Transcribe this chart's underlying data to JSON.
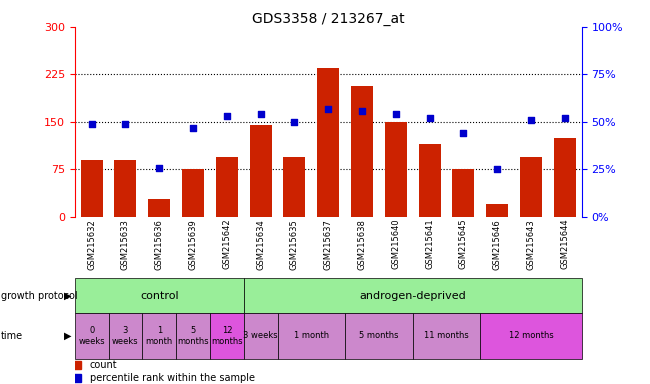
{
  "title": "GDS3358 / 213267_at",
  "samples": [
    "GSM215632",
    "GSM215633",
    "GSM215636",
    "GSM215639",
    "GSM215642",
    "GSM215634",
    "GSM215635",
    "GSM215637",
    "GSM215638",
    "GSM215640",
    "GSM215641",
    "GSM215645",
    "GSM215646",
    "GSM215643",
    "GSM215644"
  ],
  "bar_values": [
    90,
    90,
    28,
    75,
    95,
    145,
    95,
    235,
    207,
    150,
    115,
    75,
    20,
    95,
    125
  ],
  "dot_values": [
    49,
    49,
    26,
    47,
    53,
    54,
    50,
    57,
    56,
    54,
    52,
    44,
    25,
    51,
    52
  ],
  "bar_color": "#cc2200",
  "dot_color": "#0000cc",
  "left_ylim": [
    0,
    300
  ],
  "right_ylim": [
    0,
    100
  ],
  "left_yticks": [
    0,
    75,
    150,
    225,
    300
  ],
  "right_yticks": [
    0,
    25,
    50,
    75,
    100
  ],
  "right_yticklabels": [
    "0%",
    "25%",
    "50%",
    "75%",
    "100%"
  ],
  "hlines": [
    75,
    150,
    225
  ],
  "ctrl_samples": 5,
  "total_samples": 15,
  "bg_label_color": "#d8d8d8",
  "ctrl_color": "#99ee99",
  "adep_color": "#99ee99",
  "time_colors": {
    "normal": "#cc88cc",
    "highlight": "#dd55dd"
  },
  "time_data": [
    {
      "label": "0\nweeks",
      "n": 1,
      "highlight": false
    },
    {
      "label": "3\nweeks",
      "n": 1,
      "highlight": false
    },
    {
      "label": "1\nmonth",
      "n": 1,
      "highlight": false
    },
    {
      "label": "5\nmonths",
      "n": 1,
      "highlight": false
    },
    {
      "label": "12\nmonths",
      "n": 1,
      "highlight": true
    },
    {
      "label": "3 weeks",
      "n": 1,
      "highlight": false
    },
    {
      "label": "1 month",
      "n": 2,
      "highlight": false
    },
    {
      "label": "5 months",
      "n": 2,
      "highlight": false
    },
    {
      "label": "11 months",
      "n": 2,
      "highlight": false
    },
    {
      "label": "12 months",
      "n": 3,
      "highlight": true
    }
  ]
}
